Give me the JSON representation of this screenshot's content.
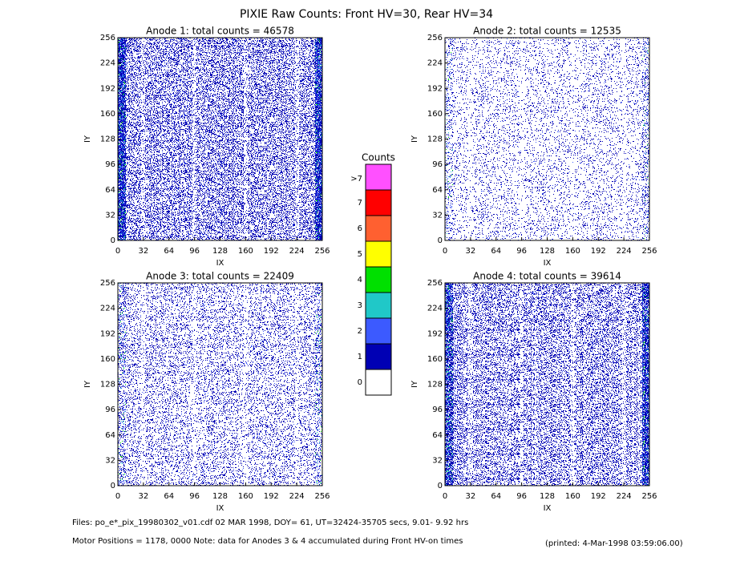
{
  "title": "PIXIE Raw Counts:  Front HV=30, Rear HV=34",
  "chart_data": [
    {
      "type": "heatmap",
      "title": "Anode 1: total counts = 46578",
      "xlabel": "IX",
      "ylabel": "IY",
      "xlim": [
        0,
        256
      ],
      "ylim": [
        0,
        256
      ],
      "xticks": [
        0,
        32,
        64,
        96,
        128,
        160,
        192,
        224,
        256
      ],
      "yticks": [
        0,
        32,
        64,
        96,
        128,
        160,
        192,
        224,
        256
      ]
    },
    {
      "type": "heatmap",
      "title": "Anode 2: total counts = 12535",
      "xlabel": "IX",
      "ylabel": "IY",
      "xlim": [
        0,
        256
      ],
      "ylim": [
        0,
        256
      ],
      "xticks": [
        0,
        32,
        64,
        96,
        128,
        160,
        192,
        224,
        256
      ],
      "yticks": [
        0,
        32,
        64,
        96,
        128,
        160,
        192,
        224,
        256
      ]
    },
    {
      "type": "heatmap",
      "title": "Anode 3: total counts = 22409",
      "xlabel": "IX",
      "ylabel": "IY",
      "xlim": [
        0,
        256
      ],
      "ylim": [
        0,
        256
      ],
      "xticks": [
        0,
        32,
        64,
        96,
        128,
        160,
        192,
        224,
        256
      ],
      "yticks": [
        0,
        32,
        64,
        96,
        128,
        160,
        192,
        224,
        256
      ]
    },
    {
      "type": "heatmap",
      "title": "Anode 4: total counts = 39614",
      "xlabel": "IX",
      "ylabel": "IY",
      "xlim": [
        0,
        256
      ],
      "ylim": [
        0,
        256
      ],
      "xticks": [
        0,
        32,
        64,
        96,
        128,
        160,
        192,
        224,
        256
      ],
      "yticks": [
        0,
        32,
        64,
        96,
        128,
        160,
        192,
        224,
        256
      ]
    }
  ],
  "colorbar": {
    "title": "Counts",
    "levels": [
      {
        "label": "0",
        "color": "#ffffff"
      },
      {
        "label": "1",
        "color": "#0000b4"
      },
      {
        "label": "2",
        "color": "#3c5aff"
      },
      {
        "label": "3",
        "color": "#20c8c8"
      },
      {
        "label": "4",
        "color": "#00e000"
      },
      {
        "label": "5",
        "color": "#ffff00"
      },
      {
        "label": "6",
        "color": "#ff6030"
      },
      {
        "label": "7",
        "color": "#ff0000"
      },
      {
        "label": ">7",
        "color": "#ff50ff"
      }
    ]
  },
  "footer": {
    "files": "Files: po_e*_pix_19980302_v01.cdf    02 MAR 1998, DOY= 61, UT=32424-35705 secs,  9.01- 9.92 hrs",
    "motor": "Motor Positions = 1178, 0000   Note: data for Anodes 3 & 4 accumulated during Front HV-on times",
    "printed": "(printed:  4-Mar-1998 03:59:06.00)"
  }
}
